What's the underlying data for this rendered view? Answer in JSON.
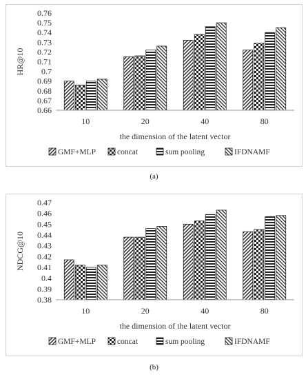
{
  "chart_data": [
    {
      "type": "bar",
      "ylabel": "HR@10",
      "xlabel": "the dimension of the latent vector",
      "categories": [
        "10",
        "20",
        "40",
        "80"
      ],
      "ylim": [
        0.66,
        0.76
      ],
      "yticks": [
        "0.66",
        "0.67",
        "0.68",
        "0.69",
        "0.7",
        "0.71",
        "0.72",
        "0.73",
        "0.74",
        "0.75",
        "0.76"
      ],
      "legend_position": "bottom",
      "grid": false,
      "series": [
        {
          "name": "GMF+MLP",
          "pattern": "diagonal-forward",
          "values": [
            0.69,
            0.715,
            0.732,
            0.722
          ]
        },
        {
          "name": "concat",
          "pattern": "checker",
          "values": [
            0.686,
            0.716,
            0.738,
            0.729
          ]
        },
        {
          "name": "sum pooling",
          "pattern": "horizontal",
          "values": [
            0.69,
            0.722,
            0.746,
            0.74
          ]
        },
        {
          "name": "IFDNAMF",
          "pattern": "diagonal-back",
          "values": [
            0.692,
            0.726,
            0.75,
            0.745
          ]
        }
      ]
    },
    {
      "type": "bar",
      "ylabel": "NDCG@10",
      "xlabel": "the dimension of the latent vector",
      "categories": [
        "10",
        "20",
        "40",
        "80"
      ],
      "ylim": [
        0.38,
        0.47
      ],
      "yticks": [
        "0.38",
        "0.39",
        "0.4",
        "0.41",
        "0.42",
        "0.43",
        "0.44",
        "0.45",
        "0.46",
        "0.47"
      ],
      "legend_position": "bottom",
      "grid": false,
      "series": [
        {
          "name": "GMF+MLP",
          "pattern": "diagonal-forward",
          "values": [
            0.417,
            0.438,
            0.45,
            0.443
          ]
        },
        {
          "name": "concat",
          "pattern": "checker",
          "values": [
            0.412,
            0.438,
            0.453,
            0.445
          ]
        },
        {
          "name": "sum pooling",
          "pattern": "horizontal",
          "values": [
            0.41,
            0.446,
            0.459,
            0.457
          ]
        },
        {
          "name": "IFDNAMF",
          "pattern": "diagonal-back",
          "values": [
            0.412,
            0.448,
            0.463,
            0.458
          ]
        }
      ]
    }
  ],
  "captions": [
    "(a)",
    "(b)"
  ],
  "colors": {
    "bar_ink": "#222222",
    "axis": "#9a9a9a",
    "text": "#333333"
  }
}
